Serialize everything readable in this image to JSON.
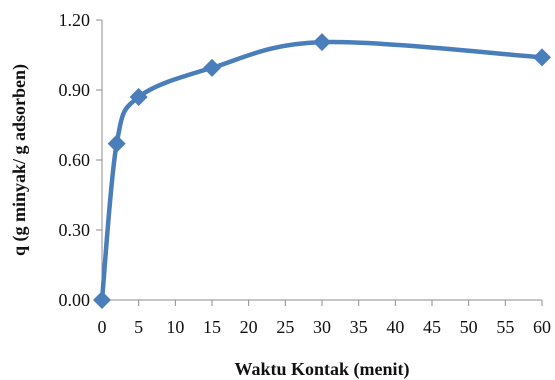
{
  "chart_data": {
    "type": "scatter",
    "xlabel": "Waktu Kontak (menit)",
    "ylabel": "q (g minyak/ g adsorben)",
    "xlim": [
      0,
      60
    ],
    "ylim": [
      0,
      1.2
    ],
    "x_ticks": [
      "0",
      "5",
      "10",
      "15",
      "20",
      "25",
      "30",
      "35",
      "40",
      "45",
      "50",
      "55",
      "60"
    ],
    "y_ticks": [
      "0.00",
      "0.30",
      "0.60",
      "0.90",
      "1.20"
    ],
    "grid": false,
    "legend": "none",
    "series": [
      {
        "x": [
          0,
          2,
          5,
          15,
          30,
          60
        ],
        "y": [
          0.0,
          0.67,
          0.87,
          0.995,
          1.105,
          1.04
        ],
        "color": "#4a7ebb",
        "marker": "diamond",
        "smoothed": true
      }
    ]
  }
}
